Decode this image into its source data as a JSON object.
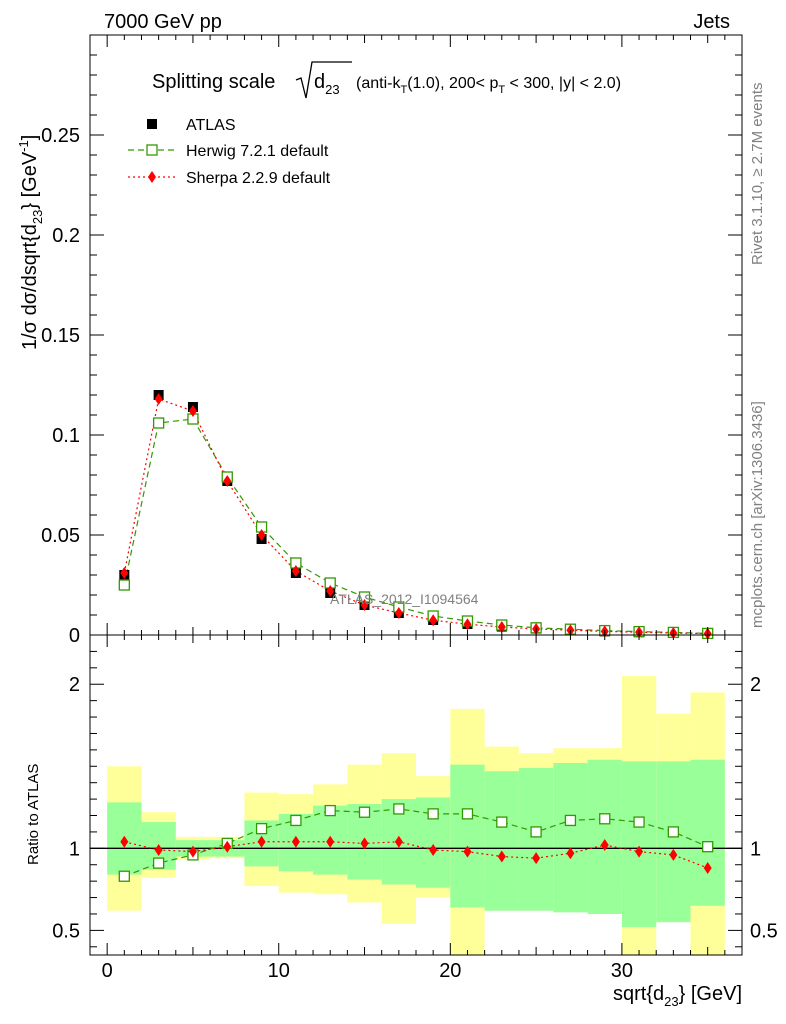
{
  "header": {
    "left": "7000 GeV pp",
    "right": "Jets"
  },
  "side_labels": {
    "rivet": "Rivet 3.1.10, ≥ 2.7M events",
    "mcplots": "mcplots.cern.ch [arXiv:1306.3436]"
  },
  "watermark": "ATLAS_2012_I1094564",
  "chart_data": [
    {
      "type": "scatter",
      "title": "Splitting scale",
      "title_math": "d23",
      "title_suffix": "(anti-kT(1.0), 200< pT < 300, |y| < 2.0)",
      "ylabel": "1/σ dσ/dsqrt{d23} [GeV^-1]",
      "xlim": [
        -1,
        37
      ],
      "ylim": [
        0,
        0.3
      ],
      "yticks": [
        "0",
        "0.05",
        "0.1",
        "0.15",
        "0.2",
        "0.25"
      ],
      "x": [
        1,
        3,
        5,
        7,
        9,
        11,
        13,
        15,
        17,
        19,
        21,
        23,
        25,
        27,
        29,
        31,
        33,
        35
      ],
      "series": [
        {
          "name": "ATLAS",
          "color": "#000000",
          "marker": "filled-square",
          "values": [
            0.03,
            0.12,
            0.114,
            0.077,
            0.048,
            0.031,
            0.021,
            0.015,
            0.011,
            0.0075,
            0.0055,
            0.0042,
            0.0032,
            0.0024,
            0.0018,
            0.0014,
            0.0011,
            0.0008
          ]
        },
        {
          "name": "Herwig 7.2.1 default",
          "color": "#339900",
          "marker": "open-square",
          "values": [
            0.025,
            0.106,
            0.108,
            0.079,
            0.054,
            0.036,
            0.026,
            0.019,
            0.014,
            0.0095,
            0.007,
            0.005,
            0.0036,
            0.0029,
            0.0022,
            0.0017,
            0.0013,
            0.0008
          ]
        },
        {
          "name": "Sherpa 2.2.9 default",
          "color": "#ff0000",
          "marker": "filled-diamond",
          "values": [
            0.031,
            0.118,
            0.112,
            0.077,
            0.05,
            0.032,
            0.022,
            0.015,
            0.011,
            0.0074,
            0.0054,
            0.004,
            0.003,
            0.0024,
            0.0018,
            0.0014,
            0.001,
            0.0007
          ]
        }
      ]
    },
    {
      "type": "line",
      "ylabel": "Ratio to ATLAS",
      "xlabel": "sqrt{d23} [GeV]",
      "xlim": [
        -1,
        37
      ],
      "ylim": [
        0.35,
        2.3
      ],
      "xticks": [
        "0",
        "10",
        "20",
        "30"
      ],
      "yticks": [
        "0.5",
        "1",
        "2"
      ],
      "x": [
        1,
        3,
        5,
        7,
        9,
        11,
        13,
        15,
        17,
        19,
        21,
        23,
        25,
        27,
        29,
        31,
        33,
        35
      ],
      "bands": {
        "stat_color": "#99ff99",
        "total_color": "#ffff99",
        "stat_low": [
          0.84,
          0.87,
          0.95,
          0.95,
          0.89,
          0.86,
          0.84,
          0.81,
          0.78,
          0.76,
          0.64,
          0.62,
          0.62,
          0.61,
          0.6,
          0.52,
          0.55,
          0.65
        ],
        "stat_high": [
          1.28,
          1.16,
          1.05,
          1.05,
          1.17,
          1.21,
          1.26,
          1.27,
          1.3,
          1.31,
          1.51,
          1.47,
          1.49,
          1.52,
          1.54,
          1.53,
          1.53,
          1.54
        ],
        "total_low": [
          0.62,
          0.82,
          0.93,
          0.94,
          0.77,
          0.73,
          0.72,
          0.67,
          0.54,
          0.7,
          0.2,
          0.79,
          0.82,
          0.82,
          0.8,
          0.2,
          0.71,
          0.2
        ],
        "total_high": [
          1.5,
          1.22,
          1.07,
          1.07,
          1.34,
          1.33,
          1.39,
          1.51,
          1.58,
          1.44,
          1.85,
          1.62,
          1.58,
          1.61,
          1.61,
          2.05,
          1.82,
          1.95
        ]
      },
      "series": [
        {
          "name": "Herwig 7.2.1 default",
          "color": "#339900",
          "values": [
            0.83,
            0.91,
            0.96,
            1.03,
            1.12,
            1.17,
            1.23,
            1.22,
            1.24,
            1.21,
            1.21,
            1.16,
            1.1,
            1.17,
            1.18,
            1.16,
            1.1,
            1.01
          ]
        },
        {
          "name": "Sherpa 2.2.9 default",
          "color": "#ff0000",
          "values": [
            1.04,
            0.99,
            0.98,
            1.01,
            1.04,
            1.04,
            1.04,
            1.03,
            1.04,
            0.99,
            0.98,
            0.95,
            0.94,
            0.97,
            1.02,
            0.98,
            0.96,
            0.88
          ]
        }
      ]
    }
  ]
}
